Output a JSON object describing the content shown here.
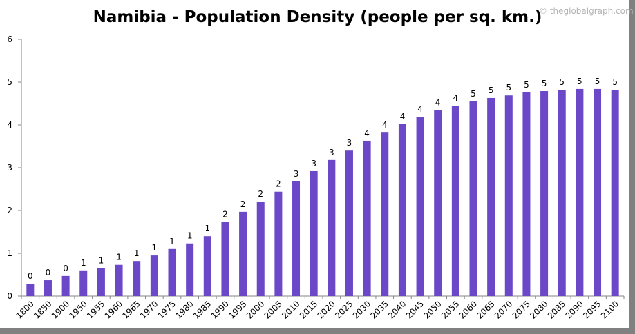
{
  "chart_data": {
    "type": "bar",
    "title": "Namibia - Population Density (people per sq. km.)",
    "watermark": "© theglobalgraph.com",
    "xlabel": "",
    "ylabel": "",
    "ylim": [
      0,
      6
    ],
    "yticks": [
      0,
      1,
      2,
      3,
      4,
      5,
      6
    ],
    "grid": false,
    "bar_color": "#6a48c8",
    "categories": [
      "1800",
      "1850",
      "1900",
      "1950",
      "1955",
      "1960",
      "1965",
      "1970",
      "1975",
      "1980",
      "1985",
      "1990",
      "1995",
      "2000",
      "2005",
      "2010",
      "2015",
      "2020",
      "2025",
      "2030",
      "2035",
      "2040",
      "2045",
      "2050",
      "2055",
      "2060",
      "2065",
      "2070",
      "2075",
      "2080",
      "2085",
      "2090",
      "2095",
      "2100"
    ],
    "values": [
      0.29,
      0.37,
      0.47,
      0.6,
      0.65,
      0.73,
      0.82,
      0.95,
      1.1,
      1.23,
      1.4,
      1.73,
      1.97,
      2.21,
      2.44,
      2.68,
      2.92,
      3.18,
      3.4,
      3.63,
      3.82,
      4.02,
      4.19,
      4.35,
      4.45,
      4.55,
      4.63,
      4.69,
      4.76,
      4.79,
      4.82,
      4.84,
      4.84,
      4.82
    ],
    "data_labels": [
      "0",
      "0",
      "0",
      "1",
      "1",
      "1",
      "1",
      "1",
      "1",
      "1",
      "1",
      "2",
      "2",
      "2",
      "2",
      "3",
      "3",
      "3",
      "3",
      "4",
      "4",
      "4",
      "4",
      "4",
      "4",
      "5",
      "5",
      "5",
      "5",
      "5",
      "5",
      "5",
      "5",
      "5"
    ]
  }
}
